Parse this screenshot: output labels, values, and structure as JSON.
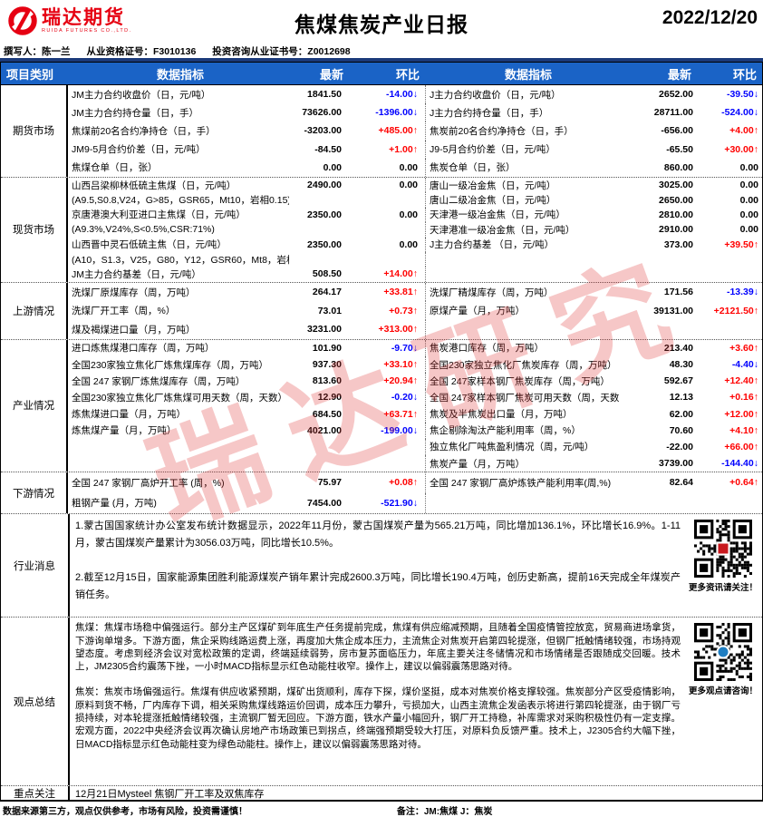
{
  "header": {
    "logo_text": "瑞达期货",
    "logo_subtext": "RUIDA FUTURES CO.,LTD.",
    "title": "焦煤焦炭产业日报",
    "date": "2022/12/20",
    "author": "撰写人：陈一兰",
    "qual_no": "从业资格证号：F3010136",
    "advisory_no": "投资咨询从业证书号：Z0012698"
  },
  "watermark": "瑞达研究",
  "colors": {
    "header_bg": "#1a63c6",
    "up": "#ff0000",
    "down": "#0000fe",
    "brand_red": "#e60012",
    "navy_line": "#1b3a7a"
  },
  "table": {
    "headers": [
      "项目类别",
      "数据指标",
      "最新",
      "环比",
      "数据指标",
      "最新",
      "环比"
    ],
    "sections": [
      {
        "category": "期货市场",
        "rows": [
          {
            "l": [
              "JM主力合约收盘价（日，元/吨）",
              "1841.50",
              "-14.00↓"
            ],
            "r": [
              "J主力合约收盘价（日，元/吨）",
              "2652.00",
              "-39.50↓"
            ]
          },
          {
            "l": [
              "JM主力合约持仓量（日，手）",
              "73626.00",
              "-1396.00↓"
            ],
            "r": [
              "J主力合约持仓量（日，手）",
              "28711.00",
              "-524.00↓"
            ]
          },
          {
            "l": [
              "焦煤前20名合约净持仓（日，手）",
              "-3203.00",
              "+485.00↑"
            ],
            "r": [
              "焦炭前20名合约净持仓（日，手）",
              "-656.00",
              "+4.00↑"
            ]
          },
          {
            "l": [
              "JM9-5月合约价差（日，元/吨）",
              "-84.50",
              "+1.00↑"
            ],
            "r": [
              "J9-5月合约价差（日，元/吨）",
              "-65.50",
              "+30.00↑"
            ]
          },
          {
            "l": [
              "焦煤仓单（日，张）",
              "0.00",
              "0.00"
            ],
            "r": [
              "焦炭仓单（日，张）",
              "860.00",
              "0.00"
            ]
          }
        ]
      },
      {
        "category": "现货市场",
        "rows": [
          {
            "l": [
              "山西吕梁柳林低硫主焦煤（日，元/吨）",
              "2490.00",
              "0.00"
            ],
            "r": [
              "唐山一级冶金焦（日，元/吨）",
              "3025.00",
              "0.00"
            ]
          },
          {
            "l": [
              "(A9.5,S0.8,V24，G>85，GSR65，Mt10，岩相0.15)",
              "",
              ""
            ],
            "r": [
              "唐山二级冶金焦（日，元/吨）",
              "2650.00",
              "0.00"
            ]
          },
          {
            "l": [
              "京唐港澳大利亚进口主焦煤（日，元/吨）",
              "2350.00",
              "0.00"
            ],
            "r": [
              "天津港一级冶金焦（日，元/吨）",
              "2810.00",
              "0.00"
            ]
          },
          {
            "l": [
              "(A9.3%,V24%,S<0.5%,CSR:71%)",
              "",
              ""
            ],
            "r": [
              "天津港准一级冶金焦（日，元/吨）",
              "2910.00",
              "0.00"
            ]
          },
          {
            "l": [
              "山西晋中灵石低硫主焦（日，元/吨）",
              "2350.00",
              "0.00"
            ],
            "r": [
              "J主力合约基差 （日，元/吨）",
              "373.00",
              "+39.50↑"
            ]
          },
          {
            "l": [
              "(A10，S1.3，V25，G80，Y12，GSR60，Mt8，岩相 0.1)",
              "",
              ""
            ],
            "r": [
              "",
              "",
              ""
            ]
          },
          {
            "l": [
              "JM主力合约基差（日，元/吨）",
              "508.50",
              "+14.00↑"
            ],
            "r": [
              "",
              "",
              ""
            ]
          }
        ]
      },
      {
        "category": "上游情况",
        "rows": [
          {
            "l": [
              "洗煤厂原煤库存（周，万吨）",
              "264.17",
              "+33.81↑"
            ],
            "r": [
              "洗煤厂精煤库存（周，万吨）",
              "171.56",
              "-13.39↓"
            ]
          },
          {
            "l": [
              "洗煤厂开工率（周，%）",
              "73.01",
              "+0.73↑"
            ],
            "r": [
              "原煤产量（月，万吨）",
              "39131.00",
              "+2121.50↑"
            ]
          },
          {
            "l": [
              "煤及褐煤进口量（月，万吨）",
              "3231.00",
              "+313.00↑"
            ],
            "r": [
              "",
              "",
              ""
            ]
          }
        ]
      },
      {
        "category": "产业情况",
        "rows": [
          {
            "l": [
              "进口炼焦煤港口库存（周，万吨）",
              "101.90",
              "-9.70↓"
            ],
            "r": [
              "焦炭港口库存（周，万吨）",
              "213.40",
              "+3.60↑"
            ]
          },
          {
            "l": [
              "全国230家独立焦化厂炼焦煤库存（周，万吨）",
              "937.30",
              "+33.10↑"
            ],
            "r": [
              "全国230家独立焦化厂焦炭库存（周，万吨）",
              "48.30",
              "-4.40↓"
            ]
          },
          {
            "l": [
              "全国 247 家钢厂炼焦煤库存（周，万吨）",
              "813.60",
              "+20.94↑"
            ],
            "r": [
              "全国 247家样本钢厂焦炭库存（周，万吨）",
              "592.67",
              "+12.40↑"
            ]
          },
          {
            "l": [
              "全国230家独立焦化厂炼焦煤可用天数（周，天数）",
              "12.90",
              "-0.20↓"
            ],
            "r": [
              "全国 247家样本钢厂焦炭可用天数（周，天数",
              "12.13",
              "+0.16↑"
            ]
          },
          {
            "l": [
              "炼焦煤进口量（月，万吨）",
              "684.50",
              "+63.71↑"
            ],
            "r": [
              "焦炭及半焦炭出口量（月，万吨）",
              "62.00",
              "+12.00↑"
            ]
          },
          {
            "l": [
              "炼焦煤产量（月，万吨）",
              "4021.00",
              "-199.00↓"
            ],
            "r": [
              "焦企剔除淘汰产能利用率（周，%）",
              "70.60",
              "+4.10↑"
            ]
          },
          {
            "l": [
              "",
              "",
              ""
            ],
            "r": [
              "独立焦化厂吨焦盈利情况（周，元/吨）",
              "-22.00",
              "+66.00↑"
            ]
          },
          {
            "l": [
              "",
              "",
              ""
            ],
            "r": [
              "焦炭产量（月，万吨）",
              "3739.00",
              "-144.40↓"
            ]
          }
        ]
      },
      {
        "category": "下游情况",
        "rows": [
          {
            "l": [
              "全国 247 家钢厂高炉开工率 (周，%)",
              "75.97",
              "+0.08↑"
            ],
            "r": [
              "全国 247 家钢厂高炉炼铁产能利用率(周,%)",
              "82.64",
              "+0.64↑"
            ]
          },
          {
            "l": [
              "粗钢产量 (月，万吨)",
              "7454.00",
              "-521.90↓"
            ],
            "r": [
              "",
              "",
              ""
            ]
          }
        ]
      }
    ]
  },
  "news": {
    "category": "行业消息",
    "paragraphs": [
      "1.蒙古国国家统计办公室发布统计数据显示，2022年11月份，蒙古国煤炭产量为565.21万吨，同比增加136.1%，环比增长16.9%。1-11月，蒙古国煤炭产量累计为3056.03万吨，同比增长10.5%。",
      "2.截至12月15日，国家能源集团胜利能源煤炭产销年累计完成2600.3万吨，同比增长190.4万吨，创历史新高，提前16天完成全年煤炭产销任务。"
    ],
    "qr_caption": "更多资讯请关注！"
  },
  "views": {
    "category": "观点总结",
    "paragraphs": [
      "焦煤：焦煤市场稳中偏强运行。部分主产区煤矿到年底生产任务提前完成，焦煤有供应缩减预期，且随着全国疫情管控放宽，贸易商进场拿货，下游询单增多。下游方面，焦企采购线路运费上涨，再度加大焦企成本压力，主流焦企对焦炭开启第四轮提涨，但钢厂抵触情绪较强，市场持观望态度。考虑到经济会议对宽松政策的定调，终端延续弱势，房市复苏面临压力，年底主要关注冬储情况和市场情绪是否跟随成交回暖。技术上，JM2305合约震荡下挫，一小时MACD指标显示红色动能柱收窄。操作上，建议以偏弱震荡思路对待。",
      "焦炭：焦炭市场偏强运行。焦煤有供应收紧预期，煤矿出货顺利，库存下探，煤价坚挺，成本对焦炭价格支撑较强。焦炭部分产区受疫情影响，原料到货不畅，厂内库存下调，相关采购焦煤线路运价回调，成本压力攀升，亏损加大，山西主流焦企发函表示将进行第四轮提涨，由于钢厂亏损持续，对本轮提涨抵触情绪较强，主流钢厂暂无回应。下游方面，铁水产量小幅回升，钢厂开工持稳，补库需求对采购积极性仍有一定支撑。宏观方面，2022中央经济会议再次确认房地产市场政策已到拐点，终端强预期受较大打压，对原料负反馈严重。技术上，J2305合约大幅下挫，日MACD指标显示红色动能柱变为绿色动能柱。操作上，建议以偏弱震荡思路对待。"
    ],
    "qr_caption": "更多观点请咨询！"
  },
  "focus": {
    "category": "重点关注",
    "content": "12月21日Mysteel 焦钢厂开工率及双焦库存"
  },
  "footer": {
    "disclaimer": "数据来源第三方，观点仅供参考，市场有风险，投资需谨慎！",
    "note": "备注：JM:焦煤 J：焦炭"
  }
}
